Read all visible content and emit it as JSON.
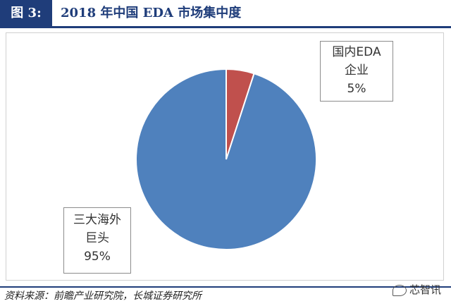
{
  "header": {
    "figure_tag": "图 3:",
    "title": "2018 年中国 EDA 市场集中度"
  },
  "chart_data": {
    "type": "pie",
    "title": "2018 年中国 EDA 市场集中度",
    "slices": [
      {
        "label": "国内EDA企业",
        "label_lines": [
          "国内EDA",
          "企业"
        ],
        "value": 5,
        "display": "5%",
        "color": "#c0504d"
      },
      {
        "label": "三大海外巨头",
        "label_lines": [
          "三大海外",
          "巨头"
        ],
        "value": 95,
        "display": "95%",
        "color": "#4f81bd"
      }
    ],
    "legend": "none",
    "data_labels": "callout boxes"
  },
  "source": "资料来源：前瞻产业研究院，长城证券研究所",
  "watermark": "芯智讯"
}
